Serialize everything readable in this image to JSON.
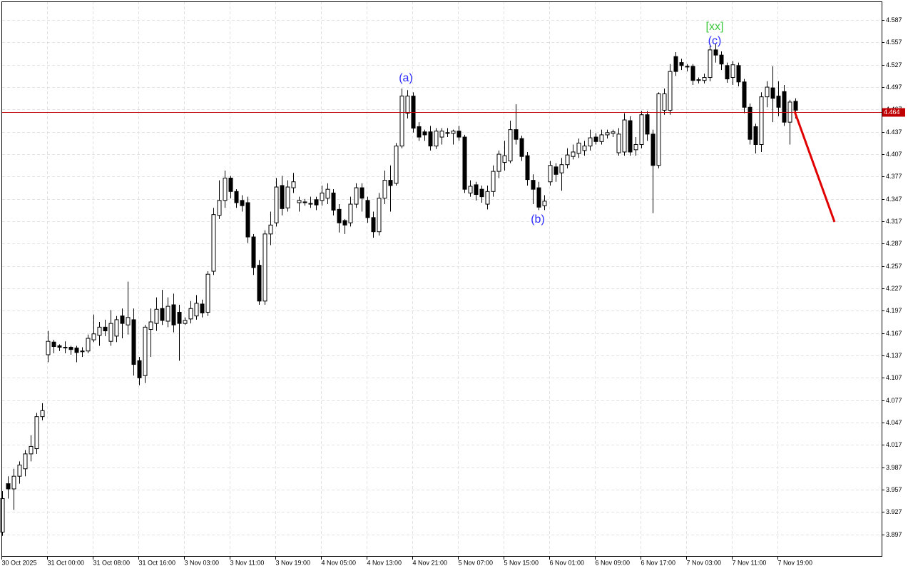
{
  "chart_data": {
    "type": "candlestick",
    "categories": [
      "30 Oct 2025",
      null,
      null,
      null,
      null,
      null,
      null,
      null,
      "31 Oct 00:00",
      null,
      null,
      null,
      null,
      null,
      null,
      null,
      "31 Oct 08:00",
      null,
      null,
      null,
      null,
      null,
      null,
      null,
      "31 Oct 16:00",
      null,
      null,
      null,
      null,
      null,
      null,
      null,
      "3 Nov 03:00",
      null,
      null,
      null,
      null,
      null,
      null,
      null,
      "3 Nov 11:00",
      null,
      null,
      null,
      null,
      null,
      null,
      null,
      "3 Nov 19:00",
      null,
      null,
      null,
      null,
      null,
      null,
      null,
      "4 Nov 05:00",
      null,
      null,
      null,
      null,
      null,
      null,
      null,
      "4 Nov 13:00",
      null,
      null,
      null,
      null,
      null,
      null,
      null,
      "4 Nov 21:00",
      null,
      null,
      null,
      null,
      null,
      null,
      null,
      "5 Nov 07:00",
      null,
      null,
      null,
      null,
      null,
      null,
      null,
      "5 Nov 15:00",
      null,
      null,
      null,
      null,
      null,
      null,
      null,
      "6 Nov 01:00",
      null,
      null,
      null,
      null,
      null,
      null,
      null,
      "6 Nov 09:00",
      null,
      null,
      null,
      null,
      null,
      null,
      null,
      "6 Nov 17:00",
      null,
      null,
      null,
      null,
      null,
      null,
      null,
      "7 Nov 03:00",
      null,
      null,
      null,
      null,
      null,
      null,
      null,
      "7 Nov 11:00",
      null,
      null,
      null,
      null,
      null,
      null,
      null,
      "7 Nov 19:00",
      null,
      null,
      null
    ],
    "open": [
      3.9,
      3.965,
      3.958,
      3.975,
      3.985,
      4.005,
      4.012,
      4.055,
      4.138,
      4.155,
      4.15,
      4.148,
      4.148,
      4.147,
      4.142,
      4.143,
      4.158,
      4.164,
      4.175,
      4.156,
      4.163,
      4.19,
      4.178,
      4.185,
      4.13,
      4.11,
      4.172,
      4.18,
      4.2,
      4.183,
      4.205,
      4.195,
      4.18,
      4.186,
      4.19,
      4.206,
      4.195,
      4.25,
      4.325,
      4.345,
      4.375,
      4.357,
      4.345,
      4.342,
      4.296,
      4.258,
      4.21,
      4.3,
      4.315,
      4.365,
      4.335,
      4.362,
      4.342,
      4.343,
      4.34,
      4.346,
      4.345,
      4.348,
      4.355,
      4.333,
      4.318,
      4.315,
      4.34,
      4.362,
      4.345,
      4.322,
      4.303,
      4.348,
      4.372,
      4.368,
      4.418,
      4.462,
      4.485,
      4.444,
      4.437,
      4.437,
      4.418,
      4.43,
      4.435,
      4.435,
      4.438,
      4.43,
      4.355,
      4.366,
      4.36,
      4.34,
      4.357,
      4.384,
      4.396,
      4.398,
      4.44,
      4.428,
      4.405,
      4.372,
      4.362,
      4.338,
      4.37,
      4.39,
      4.382,
      4.393,
      4.404,
      4.408,
      4.412,
      4.418,
      4.43,
      4.424,
      4.433,
      4.435,
      4.409,
      4.41,
      4.452,
      4.413,
      4.42,
      4.46,
      4.434,
      4.392,
      4.466,
      4.466,
      4.538,
      4.53,
      4.525,
      4.525,
      4.506,
      4.506,
      4.51,
      4.547,
      4.54,
      4.526,
      4.51,
      4.526,
      4.504,
      4.47,
      4.444,
      4.42,
      4.484,
      4.496,
      4.485,
      4.491,
      4.45,
      4.478
    ],
    "high": [
      3.955,
      3.975,
      3.985,
      3.995,
      4.01,
      4.03,
      4.06,
      4.073,
      4.17,
      4.158,
      4.152,
      4.156,
      4.15,
      4.15,
      4.148,
      4.165,
      4.192,
      4.182,
      4.185,
      4.198,
      4.19,
      4.2,
      4.236,
      4.2,
      4.135,
      4.178,
      4.2,
      4.215,
      4.225,
      4.215,
      4.22,
      4.205,
      4.188,
      4.21,
      4.218,
      4.212,
      4.25,
      4.335,
      4.372,
      4.385,
      4.378,
      4.36,
      4.352,
      4.35,
      4.3,
      4.265,
      4.305,
      4.33,
      4.375,
      4.378,
      4.372,
      4.382,
      4.35,
      4.347,
      4.35,
      4.35,
      4.365,
      4.368,
      4.36,
      4.34,
      4.32,
      4.35,
      4.368,
      4.368,
      4.35,
      4.33,
      4.355,
      4.385,
      4.392,
      4.422,
      4.495,
      4.493,
      4.49,
      4.45,
      4.44,
      4.445,
      4.442,
      4.442,
      4.442,
      4.44,
      4.445,
      4.433,
      4.372,
      4.37,
      4.365,
      4.365,
      4.392,
      4.412,
      4.425,
      4.452,
      4.474,
      4.432,
      4.41,
      4.38,
      4.37,
      4.352,
      4.398,
      4.395,
      4.402,
      4.415,
      4.42,
      4.428,
      4.425,
      4.44,
      4.435,
      4.44,
      4.44,
      4.44,
      4.442,
      4.462,
      4.458,
      4.43,
      4.465,
      4.465,
      4.44,
      4.49,
      4.495,
      4.528,
      4.544,
      4.535,
      4.528,
      4.528,
      4.51,
      4.515,
      4.555,
      4.555,
      4.545,
      4.53,
      4.532,
      4.53,
      4.508,
      4.475,
      4.448,
      4.49,
      4.505,
      4.525,
      4.505,
      4.5,
      4.48,
      4.482
    ],
    "low": [
      3.895,
      3.945,
      3.93,
      3.965,
      3.975,
      3.995,
      4.005,
      4.05,
      4.128,
      4.14,
      4.143,
      4.14,
      4.138,
      4.128,
      4.135,
      4.14,
      4.155,
      4.15,
      4.163,
      4.15,
      4.155,
      4.16,
      4.165,
      4.11,
      4.097,
      4.1,
      4.135,
      4.17,
      4.178,
      4.175,
      4.168,
      4.13,
      4.178,
      4.18,
      4.185,
      4.188,
      4.19,
      4.245,
      4.32,
      4.335,
      4.348,
      4.335,
      4.33,
      4.288,
      4.245,
      4.205,
      4.205,
      4.285,
      4.31,
      4.325,
      4.33,
      4.355,
      4.33,
      4.338,
      4.335,
      4.332,
      4.338,
      4.34,
      4.325,
      4.302,
      4.3,
      4.31,
      4.335,
      4.33,
      4.315,
      4.295,
      4.298,
      4.34,
      4.33,
      4.365,
      4.415,
      4.455,
      4.436,
      4.425,
      4.425,
      4.412,
      4.414,
      4.42,
      4.43,
      4.42,
      4.425,
      4.355,
      4.35,
      4.345,
      4.342,
      4.333,
      4.35,
      4.375,
      4.385,
      4.395,
      4.42,
      4.398,
      4.365,
      4.34,
      4.332,
      4.332,
      4.365,
      4.37,
      4.358,
      4.388,
      4.4,
      4.402,
      4.405,
      4.412,
      4.42,
      4.42,
      4.428,
      4.43,
      4.405,
      4.405,
      4.405,
      4.405,
      4.415,
      4.425,
      4.328,
      4.388,
      4.46,
      4.46,
      4.512,
      4.52,
      4.518,
      4.5,
      4.502,
      4.502,
      4.505,
      4.53,
      4.52,
      4.503,
      4.5,
      4.498,
      4.462,
      4.42,
      4.408,
      4.41,
      4.47,
      4.45,
      4.458,
      4.445,
      4.42,
      4.455
    ],
    "close": [
      3.945,
      3.958,
      3.975,
      3.99,
      4.005,
      4.015,
      4.055,
      4.063,
      4.156,
      4.149,
      4.148,
      4.148,
      4.145,
      4.141,
      4.143,
      4.16,
      4.166,
      4.175,
      4.17,
      4.18,
      4.185,
      4.18,
      4.188,
      4.125,
      4.107,
      4.175,
      4.182,
      4.199,
      4.184,
      4.203,
      4.178,
      4.18,
      4.184,
      4.2,
      4.207,
      4.194,
      4.246,
      4.326,
      4.345,
      4.375,
      4.357,
      4.342,
      4.338,
      4.296,
      4.255,
      4.21,
      4.3,
      4.312,
      4.363,
      4.334,
      4.363,
      4.37,
      4.345,
      4.342,
      4.341,
      4.339,
      4.355,
      4.36,
      4.332,
      4.315,
      4.312,
      4.34,
      4.362,
      4.348,
      4.322,
      4.303,
      4.348,
      4.372,
      4.365,
      4.418,
      4.485,
      4.485,
      4.442,
      4.43,
      4.433,
      4.418,
      4.438,
      4.438,
      4.436,
      4.438,
      4.43,
      4.36,
      4.364,
      4.353,
      4.35,
      4.357,
      4.384,
      4.407,
      4.405,
      4.44,
      4.427,
      4.404,
      4.373,
      4.36,
      4.336,
      4.344,
      4.392,
      4.38,
      4.393,
      4.406,
      4.41,
      4.422,
      4.418,
      4.429,
      4.424,
      4.433,
      4.436,
      4.437,
      4.434,
      4.453,
      4.41,
      4.42,
      4.46,
      4.434,
      4.392,
      4.488,
      4.488,
      4.518,
      4.518,
      4.526,
      4.524,
      4.506,
      4.507,
      4.51,
      4.547,
      4.54,
      4.528,
      4.508,
      4.527,
      4.504,
      4.47,
      4.427,
      4.42,
      4.484,
      4.497,
      4.482,
      4.47,
      4.45,
      4.477,
      4.466
    ],
    "up_color": "#ffffff",
    "down_color": "#000000",
    "ylim": [
      3.867,
      4.612
    ],
    "yticks": [
      3.897,
      3.927,
      3.957,
      3.987,
      4.017,
      4.047,
      4.077,
      4.107,
      4.137,
      4.167,
      4.197,
      4.227,
      4.257,
      4.287,
      4.317,
      4.347,
      4.377,
      4.407,
      4.437,
      4.467,
      4.497,
      4.527,
      4.557,
      4.587
    ],
    "grid": true,
    "price_line": {
      "value": 4.464,
      "color": "#c00000"
    },
    "annotations": [
      {
        "text": "(a)",
        "color": "#2b2bff"
      },
      {
        "text": "(b)",
        "color": "#2b2bff"
      },
      {
        "text": "(c)",
        "color": "#2b2bff"
      },
      {
        "text": "[xx]",
        "color": "#3cc83c"
      }
    ]
  }
}
